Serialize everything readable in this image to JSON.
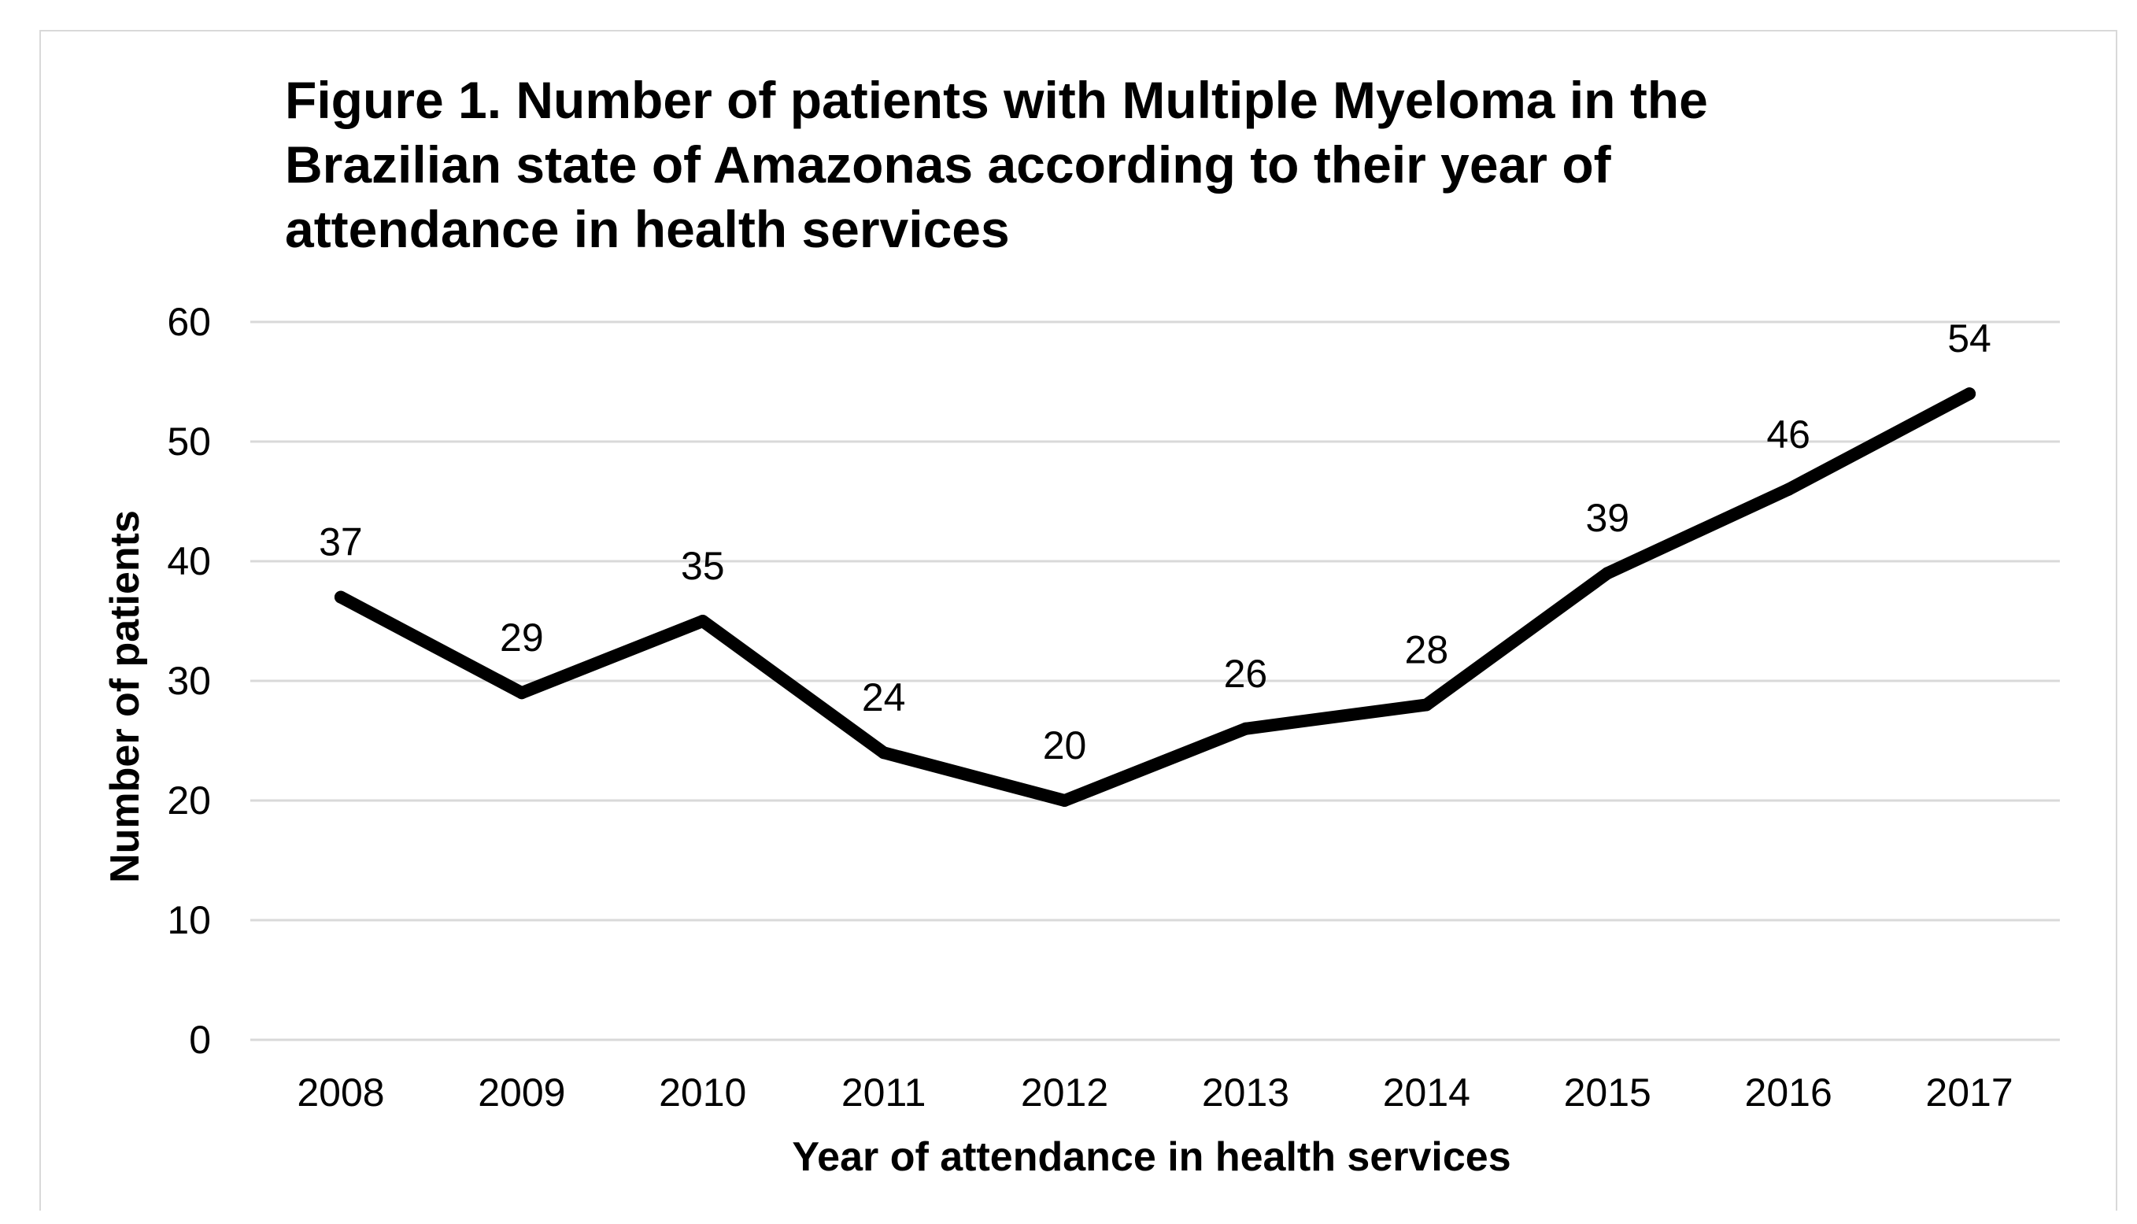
{
  "chart_data": {
    "type": "line",
    "title_lines": [
      "Figure 1. Number of patients with Multiple Myeloma in the",
      "Brazilian state of Amazonas according to their year of",
      "attendance in health services"
    ],
    "xlabel": "Year of attendance in health services",
    "ylabel": "Number of patients",
    "categories": [
      "2008",
      "2009",
      "2010",
      "2011",
      "2012",
      "2013",
      "2014",
      "2015",
      "2016",
      "2017"
    ],
    "series": [
      {
        "values": [
          37,
          29,
          35,
          24,
          20,
          26,
          28,
          39,
          46,
          54
        ]
      }
    ],
    "data_labels": [
      "37",
      "29",
      "35",
      "24",
      "20",
      "26",
      "28",
      "39",
      "46",
      "54"
    ],
    "ylim": [
      0,
      60
    ],
    "yticks": [
      0,
      10,
      20,
      30,
      40,
      50,
      60
    ],
    "ytick_labels": [
      "0",
      "10",
      "20",
      "30",
      "40",
      "50",
      "60"
    ],
    "grid": true,
    "legend": "none",
    "colors": {
      "line": "#000000",
      "grid": "#d9d9d9",
      "text": "#000000"
    }
  }
}
